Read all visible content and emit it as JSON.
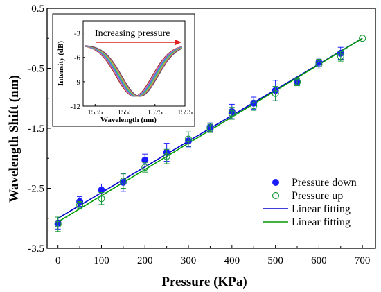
{
  "chart_data": [
    {
      "type": "scatter",
      "xlabel": "Pressure (KPa)",
      "ylabel": "Wavelength Shift (nm)",
      "xlim": [
        -25,
        730
      ],
      "ylim": [
        -3.5,
        0.5
      ],
      "x_ticks": [
        "0",
        "100",
        "200",
        "300",
        "400",
        "500",
        "600",
        "700"
      ],
      "y_ticks": [
        "0.5",
        "-0.5",
        "-1.5",
        "-2.5",
        "-3.5"
      ],
      "series": [
        {
          "name": "Pressure down",
          "marker": "filled-circle",
          "color": "#1a1aff",
          "x": [
            0,
            50,
            100,
            150,
            200,
            250,
            300,
            350,
            400,
            450,
            500,
            550,
            600,
            650
          ],
          "y": [
            -3.08,
            -2.72,
            -2.53,
            -2.4,
            -2.03,
            -1.9,
            -1.71,
            -1.48,
            -1.22,
            -1.08,
            -0.87,
            -0.72,
            -0.4,
            -0.25
          ],
          "err": [
            0.1,
            0.08,
            0.1,
            0.15,
            0.1,
            0.15,
            0.1,
            0.07,
            0.12,
            0.1,
            0.17,
            0.06,
            0.07,
            0.1
          ]
        },
        {
          "name": "Pressure up",
          "marker": "open-circle",
          "color": "#1a9a3a",
          "x": [
            0,
            50,
            100,
            150,
            200,
            250,
            300,
            350,
            400,
            450,
            500,
            550,
            600,
            650,
            700
          ],
          "y": [
            -3.1,
            -2.78,
            -2.67,
            -2.38,
            -2.15,
            -1.97,
            -1.68,
            -1.5,
            -1.25,
            -1.12,
            -0.92,
            -0.73,
            -0.43,
            -0.3,
            0.0
          ],
          "err": [
            0.12,
            0.06,
            0.1,
            0.12,
            0.08,
            0.12,
            0.12,
            0.07,
            0.1,
            0.08,
            0.12,
            0.06,
            0.08,
            0.08,
            0.0
          ]
        },
        {
          "name": "Linear fitting",
          "type": "line",
          "color": "#0000cc",
          "x": [
            0,
            700
          ],
          "y": [
            -3.0,
            0.0
          ]
        },
        {
          "name": "Linear fitting",
          "type": "line",
          "color": "#009a00",
          "x": [
            0,
            700
          ],
          "y": [
            -3.06,
            0.0
          ]
        }
      ],
      "legend_position": "lower-right"
    },
    {
      "type": "line",
      "xlabel": "Wavelength (nm)",
      "ylabel": "Intensity (dB)",
      "xlim": [
        1527,
        1595
      ],
      "ylim": [
        -12,
        -1.5
      ],
      "x_ticks": [
        "1535",
        "1555",
        "1575",
        "1595"
      ],
      "y_ticks": [
        "-3",
        "-6",
        "-9",
        "-12"
      ],
      "annotation": "Increasing pressure",
      "curves": {
        "count": 15,
        "min_wavelength_start": 1561,
        "min_wavelength_end": 1565,
        "min_intensity": -10.8,
        "edge_intensity": -4.5,
        "colors": [
          "#7a2a2a",
          "#c63c3c",
          "#e07070",
          "#c08ad0",
          "#9a5ad0",
          "#6a6ae0",
          "#4a8ae0",
          "#3aa0c0",
          "#2ab09a",
          "#5ac06a",
          "#8ac050",
          "#c0b040",
          "#e08a40",
          "#c05a8a",
          "#6a4a6a"
        ]
      }
    }
  ]
}
